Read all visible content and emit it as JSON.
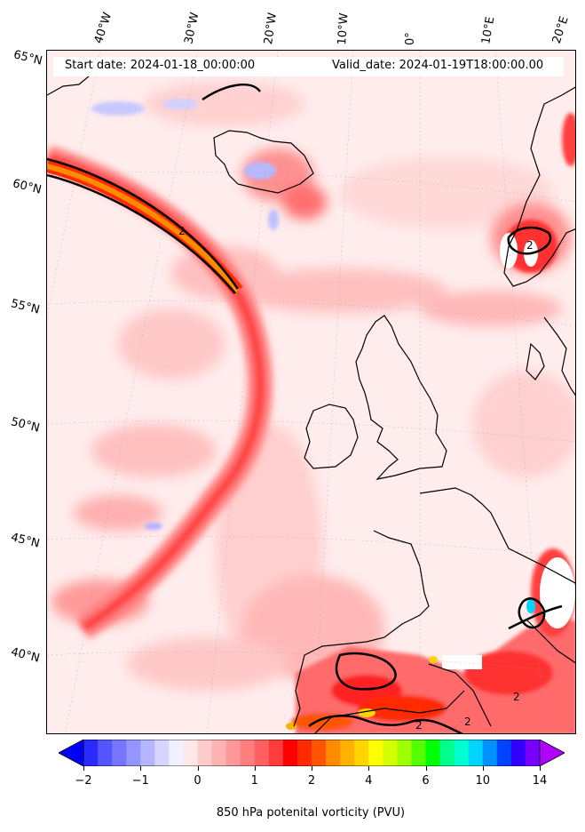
{
  "header": {
    "start_date": "Start date: 2024-01-18_00:00:00",
    "valid_date": "Valid_date: 2024-01-19T18:00:00.00"
  },
  "lon_labels": [
    "40°W",
    "30°W",
    "20°W",
    "10°W",
    "0°",
    "10°E",
    "20°E"
  ],
  "lat_labels": [
    "65°N",
    "60°N",
    "55°N",
    "50°N",
    "45°N",
    "40°N"
  ],
  "contour_labels": [
    "2",
    "2",
    "2",
    "2",
    "2"
  ],
  "colorbar": {
    "label": "850 hPa potenital vorticity (PVU)",
    "ticks": [
      "−2",
      "−1",
      "0",
      "1",
      "2",
      "4",
      "6",
      "10",
      "14"
    ],
    "colors": [
      "#0000ff",
      "#2a2aff",
      "#5555ff",
      "#7575ff",
      "#9595ff",
      "#b5b5ff",
      "#d5d5ff",
      "#f0f0ff",
      "#ffe8e8",
      "#ffcccc",
      "#ffb2b2",
      "#ff9999",
      "#ff7f7f",
      "#ff6060",
      "#ff3c3c",
      "#ff0000",
      "#ff2a00",
      "#ff5500",
      "#ff8c00",
      "#ffb000",
      "#ffd400",
      "#ffff00",
      "#d4ff00",
      "#9eff00",
      "#55ff00",
      "#00ff00",
      "#00ff88",
      "#00ffd0",
      "#00d5ff",
      "#0090ff",
      "#0044ff",
      "#3300ff",
      "#7700ff",
      "#b000ff"
    ]
  },
  "colors": {
    "frame": "#000000",
    "coast": "#000000",
    "background_pv": "#ffecec",
    "high_pv": "#ff0000"
  }
}
